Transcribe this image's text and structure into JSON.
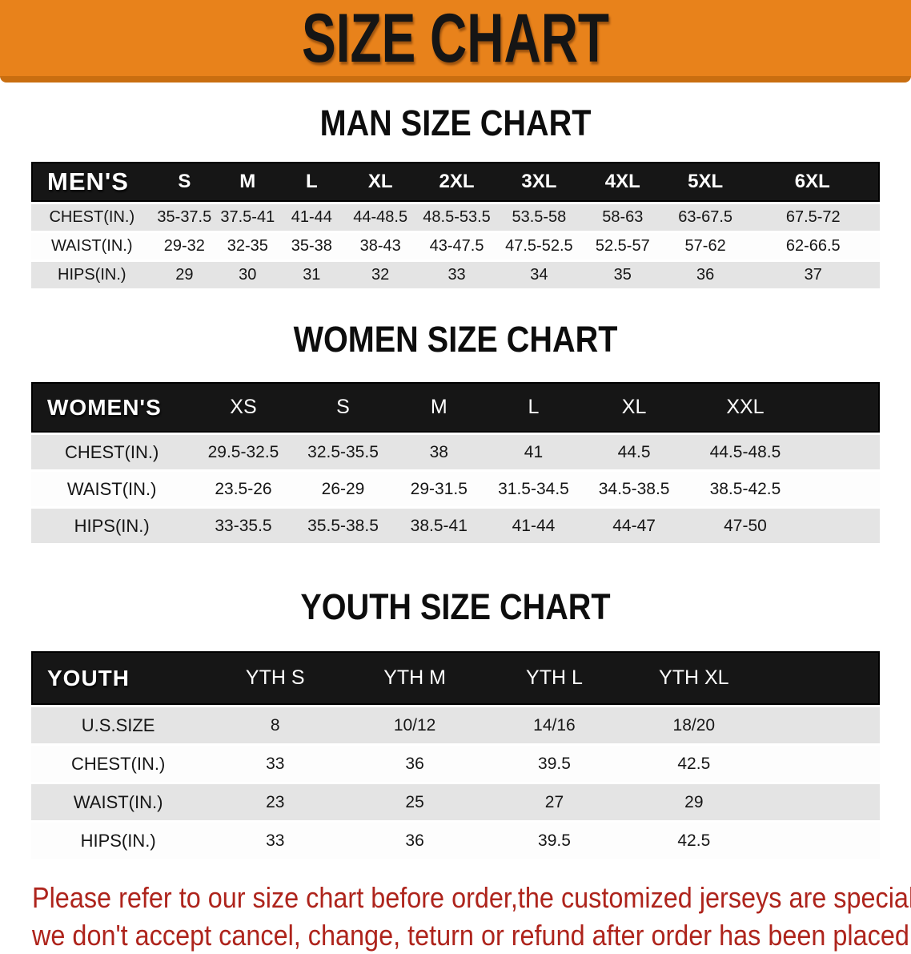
{
  "banner": {
    "title": "SIZE CHART"
  },
  "colors": {
    "banner_bg": "#E8821B",
    "banner_edge": "#C96E10",
    "title_text": "#151515",
    "header_bar": "#161616",
    "row_gray": "#E4E4E4",
    "row_white": "#FDFDFD",
    "footer_text": "#AE241C"
  },
  "chart_data": [
    {
      "type": "table",
      "title": "MAN SIZE CHART",
      "corner_label": "MEN'S",
      "columns": [
        "S",
        "M",
        "L",
        "XL",
        "2XL",
        "3XL",
        "4XL",
        "5XL",
        "6XL"
      ],
      "rows": [
        {
          "label": "CHEST(IN.)",
          "values": [
            "35-37.5",
            "37.5-41",
            "41-44",
            "44-48.5",
            "48.5-53.5",
            "53.5-58",
            "58-63",
            "63-67.5",
            "67.5-72"
          ]
        },
        {
          "label": "WAIST(IN.)",
          "values": [
            "29-32",
            "32-35",
            "35-38",
            "38-43",
            "43-47.5",
            "47.5-52.5",
            "52.5-57",
            "57-62",
            "62-66.5"
          ]
        },
        {
          "label": "HIPS(IN.)",
          "values": [
            "29",
            "30",
            "31",
            "32",
            "33",
            "34",
            "35",
            "36",
            "37"
          ]
        }
      ]
    },
    {
      "type": "table",
      "title": "WOMEN SIZE CHART",
      "corner_label": "WOMEN'S",
      "columns": [
        "XS",
        "S",
        "M",
        "L",
        "XL",
        "XXL"
      ],
      "rows": [
        {
          "label": "CHEST(IN.)",
          "values": [
            "29.5-32.5",
            "32.5-35.5",
            "38",
            "41",
            "44.5",
            "44.5-48.5"
          ]
        },
        {
          "label": "WAIST(IN.)",
          "values": [
            "23.5-26",
            "26-29",
            "29-31.5",
            "31.5-34.5",
            "34.5-38.5",
            "38.5-42.5"
          ]
        },
        {
          "label": "HIPS(IN.)",
          "values": [
            "33-35.5",
            "35.5-38.5",
            "38.5-41",
            "41-44",
            "44-47",
            "47-50"
          ]
        }
      ]
    },
    {
      "type": "table",
      "title": "YOUTH SIZE CHART",
      "corner_label": "YOUTH",
      "columns": [
        "YTH S",
        "YTH M",
        "YTH L",
        "YTH XL"
      ],
      "rows": [
        {
          "label": "U.S.SIZE",
          "values": [
            "8",
            "10/12",
            "14/16",
            "18/20"
          ]
        },
        {
          "label": "CHEST(IN.)",
          "values": [
            "33",
            "36",
            "39.5",
            "42.5"
          ]
        },
        {
          "label": "WAIST(IN.)",
          "values": [
            "23",
            "25",
            "27",
            "29"
          ]
        },
        {
          "label": "HIPS(IN.)",
          "values": [
            "33",
            "36",
            "39.5",
            "42.5"
          ]
        }
      ]
    }
  ],
  "footer": {
    "line1": "Please refer to our size chart before order,the customized jerseys are special products,",
    "line2": "we don't accept cancel, change, teturn or refund after order has been placed!"
  }
}
